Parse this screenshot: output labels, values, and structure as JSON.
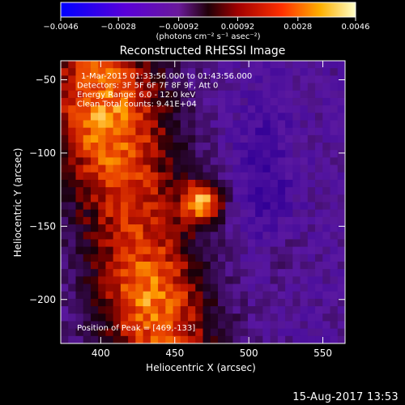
{
  "chart_data": {
    "type": "heatmap",
    "title": "Reconstructed RHESSI Image",
    "xlabel": "Heliocentric X (arcsec)",
    "ylabel": "Heliocentric Y (arcsec)",
    "xlim": [
      373,
      565
    ],
    "ylim": [
      -230,
      -37
    ],
    "x_ticks": [
      "400",
      "450",
      "500",
      "550"
    ],
    "x_tick_values": [
      400,
      450,
      500,
      550
    ],
    "y_ticks": [
      "-50",
      "-100",
      "-150",
      "-200"
    ],
    "y_tick_values": [
      -50,
      -100,
      -150,
      -200
    ],
    "annotations": [
      "1-Mar-2015 01:33:56.000 to 01:43:56.000",
      "Detectors: 3F 5F 6F 7F 8F 9F, Att 0",
      "Energy Range: 6.0 - 12.0 keV",
      "Clean     Total counts: 9.41E+04"
    ],
    "peak_label": "Position of Peak = [469,-133]",
    "peak": [
      469,
      -133
    ],
    "colorbar": {
      "range": [
        -0.0046,
        0.0046
      ],
      "tick_labels": [
        "-0.0046",
        "-0.0028",
        "-0.00092",
        "0.00092",
        "0.0028",
        "0.0046"
      ],
      "tick_values": [
        -0.0046,
        -0.0028,
        -0.00092,
        0.00092,
        0.0028,
        0.0046
      ],
      "units": "(photons cm⁻² s⁻¹ asec⁻²)"
    }
  },
  "footer": {
    "date": "15-Aug-2017 13:53"
  }
}
